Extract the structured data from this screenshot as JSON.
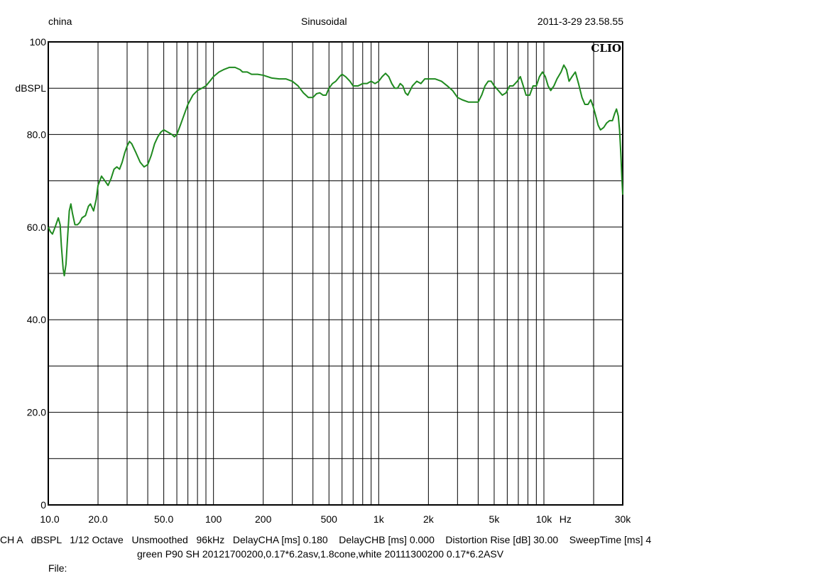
{
  "header": {
    "left": "china",
    "center": "Sinusoidal",
    "right": "2011-3-29 23.58.55"
  },
  "brand": "CLIO",
  "status_line": "CH A   dBSPL   1/12 Octave   Unsmoothed   96kHz   DelayCHA [ms] 0.180    DelayCHB [ms] 0.000    Distortion Rise [dB] 30.00    SweepTime [ms] 4",
  "description_line": "green P90 SH 20121700200,0.17*6.2asv,1.8cone,white 20111300200 0.17*6.2ASV",
  "file_label": "File:",
  "chart_data": {
    "type": "line",
    "title": "Sinusoidal",
    "xlabel": "Hz",
    "ylabel": "dBSPL",
    "xscale": "log",
    "xlim": [
      10,
      30000
    ],
    "ylim": [
      0,
      100
    ],
    "grid": true,
    "x_tick_labels": [
      {
        "value": 10,
        "label": "10.0"
      },
      {
        "value": 20,
        "label": "20.0"
      },
      {
        "value": 50,
        "label": "50.0"
      },
      {
        "value": 100,
        "label": "100"
      },
      {
        "value": 200,
        "label": "200"
      },
      {
        "value": 500,
        "label": "500"
      },
      {
        "value": 1000,
        "label": "1k"
      },
      {
        "value": 2000,
        "label": "2k"
      },
      {
        "value": 5000,
        "label": "5k"
      },
      {
        "value": 10000,
        "label": "10k"
      },
      {
        "value": 30000,
        "label": "30k"
      }
    ],
    "x_unit_label": "Hz",
    "y_tick_labels": [
      {
        "value": 0,
        "label": "0"
      },
      {
        "value": 20,
        "label": "20.0"
      },
      {
        "value": 40,
        "label": "40.0"
      },
      {
        "value": 60,
        "label": "60.0"
      },
      {
        "value": 80,
        "label": "80.0"
      },
      {
        "value": 100,
        "label": "100"
      }
    ],
    "y_unit_label": "dBSPL",
    "series": [
      {
        "color": "#1f8a1f",
        "points": [
          [
            10.0,
            60.0
          ],
          [
            10.3,
            59.0
          ],
          [
            10.6,
            58.5
          ],
          [
            11.0,
            60.0
          ],
          [
            11.5,
            62.0
          ],
          [
            11.8,
            60.5
          ],
          [
            12.0,
            56.0
          ],
          [
            12.3,
            51.0
          ],
          [
            12.5,
            49.5
          ],
          [
            12.8,
            52.0
          ],
          [
            13.1,
            58.0
          ],
          [
            13.4,
            63.5
          ],
          [
            13.7,
            65.0
          ],
          [
            14.0,
            63.0
          ],
          [
            14.5,
            60.5
          ],
          [
            15.0,
            60.5
          ],
          [
            15.5,
            61.0
          ],
          [
            16.0,
            62.0
          ],
          [
            16.8,
            62.5
          ],
          [
            17.5,
            64.5
          ],
          [
            18.0,
            65.0
          ],
          [
            18.8,
            63.5
          ],
          [
            19.5,
            66.0
          ],
          [
            20.0,
            69.0
          ],
          [
            21.0,
            71.0
          ],
          [
            22.0,
            70.0
          ],
          [
            23.0,
            69.0
          ],
          [
            24.0,
            70.5
          ],
          [
            25.0,
            72.5
          ],
          [
            26.0,
            73.0
          ],
          [
            27.0,
            72.5
          ],
          [
            28.0,
            74.0
          ],
          [
            29.0,
            76.0
          ],
          [
            30.0,
            77.5
          ],
          [
            31.0,
            78.5
          ],
          [
            32.0,
            78.0
          ],
          [
            34.0,
            76.0
          ],
          [
            36.0,
            74.0
          ],
          [
            38.0,
            73.0
          ],
          [
            40.0,
            73.5
          ],
          [
            42.0,
            75.5
          ],
          [
            44.0,
            78.0
          ],
          [
            46.0,
            79.5
          ],
          [
            48.0,
            80.5
          ],
          [
            50.0,
            81.0
          ],
          [
            53.0,
            80.5
          ],
          [
            56.0,
            80.0
          ],
          [
            58.0,
            79.5
          ],
          [
            60.0,
            80.0
          ],
          [
            63.0,
            82.0
          ],
          [
            66.0,
            84.0
          ],
          [
            70.0,
            86.5
          ],
          [
            75.0,
            88.5
          ],
          [
            80.0,
            89.5
          ],
          [
            85.0,
            90.0
          ],
          [
            90.0,
            90.5
          ],
          [
            95.0,
            91.5
          ],
          [
            100.0,
            92.5
          ],
          [
            108.0,
            93.5
          ],
          [
            115.0,
            94.0
          ],
          [
            125.0,
            94.5
          ],
          [
            135.0,
            94.5
          ],
          [
            145.0,
            94.0
          ],
          [
            150.0,
            93.5
          ],
          [
            160.0,
            93.5
          ],
          [
            170.0,
            93.0
          ],
          [
            185.0,
            93.0
          ],
          [
            200.0,
            92.8
          ],
          [
            225.0,
            92.2
          ],
          [
            250.0,
            92.0
          ],
          [
            275.0,
            92.0
          ],
          [
            300.0,
            91.5
          ],
          [
            325.0,
            90.5
          ],
          [
            350.0,
            89.0
          ],
          [
            375.0,
            88.0
          ],
          [
            400.0,
            88.0
          ],
          [
            420.0,
            88.8
          ],
          [
            440.0,
            89.0
          ],
          [
            460.0,
            88.5
          ],
          [
            480.0,
            88.5
          ],
          [
            500.0,
            90.0
          ],
          [
            525.0,
            91.0
          ],
          [
            550.0,
            91.5
          ],
          [
            580.0,
            92.5
          ],
          [
            600.0,
            93.0
          ],
          [
            630.0,
            92.5
          ],
          [
            670.0,
            91.5
          ],
          [
            700.0,
            90.5
          ],
          [
            750.0,
            90.5
          ],
          [
            800.0,
            91.0
          ],
          [
            850.0,
            91.0
          ],
          [
            900.0,
            91.5
          ],
          [
            950.0,
            91.0
          ],
          [
            1000.0,
            91.5
          ],
          [
            1050.0,
            92.5
          ],
          [
            1100.0,
            93.2
          ],
          [
            1150.0,
            92.5
          ],
          [
            1200.0,
            91.0
          ],
          [
            1250.0,
            90.0
          ],
          [
            1300.0,
            90.0
          ],
          [
            1350.0,
            91.0
          ],
          [
            1400.0,
            90.5
          ],
          [
            1450.0,
            89.0
          ],
          [
            1500.0,
            88.5
          ],
          [
            1600.0,
            90.5
          ],
          [
            1700.0,
            91.5
          ],
          [
            1800.0,
            91.0
          ],
          [
            1900.0,
            92.0
          ],
          [
            2000.0,
            92.0
          ],
          [
            2200.0,
            92.0
          ],
          [
            2400.0,
            91.5
          ],
          [
            2600.0,
            90.5
          ],
          [
            2800.0,
            89.5
          ],
          [
            3000.0,
            88.0
          ],
          [
            3200.0,
            87.5
          ],
          [
            3500.0,
            87.0
          ],
          [
            3800.0,
            87.0
          ],
          [
            4000.0,
            87.0
          ],
          [
            4200.0,
            88.5
          ],
          [
            4400.0,
            90.5
          ],
          [
            4600.0,
            91.5
          ],
          [
            4800.0,
            91.5
          ],
          [
            5000.0,
            90.5
          ],
          [
            5300.0,
            89.5
          ],
          [
            5600.0,
            88.5
          ],
          [
            5900.0,
            89.0
          ],
          [
            6200.0,
            90.5
          ],
          [
            6500.0,
            90.5
          ],
          [
            6900.0,
            91.5
          ],
          [
            7200.0,
            92.5
          ],
          [
            7500.0,
            90.5
          ],
          [
            7800.0,
            88.5
          ],
          [
            8200.0,
            88.5
          ],
          [
            8600.0,
            90.5
          ],
          [
            9000.0,
            90.5
          ],
          [
            9400.0,
            92.5
          ],
          [
            9800.0,
            93.5
          ],
          [
            10200.0,
            92.5
          ],
          [
            10600.0,
            90.5
          ],
          [
            11000.0,
            89.5
          ],
          [
            11500.0,
            90.5
          ],
          [
            12000.0,
            92.0
          ],
          [
            12700.0,
            93.5
          ],
          [
            13200.0,
            95.0
          ],
          [
            13700.0,
            94.0
          ],
          [
            14200.0,
            91.5
          ],
          [
            14800.0,
            92.5
          ],
          [
            15500.0,
            93.5
          ],
          [
            16200.0,
            91.0
          ],
          [
            17000.0,
            88.0
          ],
          [
            17700.0,
            86.5
          ],
          [
            18500.0,
            86.5
          ],
          [
            19200.0,
            87.5
          ],
          [
            19900.0,
            86.0
          ],
          [
            20600.0,
            84.0
          ],
          [
            21300.0,
            82.0
          ],
          [
            22000.0,
            81.0
          ],
          [
            23000.0,
            81.5
          ],
          [
            24000.0,
            82.5
          ],
          [
            25000.0,
            83.0
          ],
          [
            26000.0,
            83.0
          ],
          [
            26800.0,
            84.5
          ],
          [
            27500.0,
            85.5
          ],
          [
            28200.0,
            84.0
          ],
          [
            28700.0,
            81.0
          ],
          [
            29200.0,
            76.0
          ],
          [
            29700.0,
            70.0
          ],
          [
            30000.0,
            67.0
          ]
        ]
      }
    ]
  }
}
